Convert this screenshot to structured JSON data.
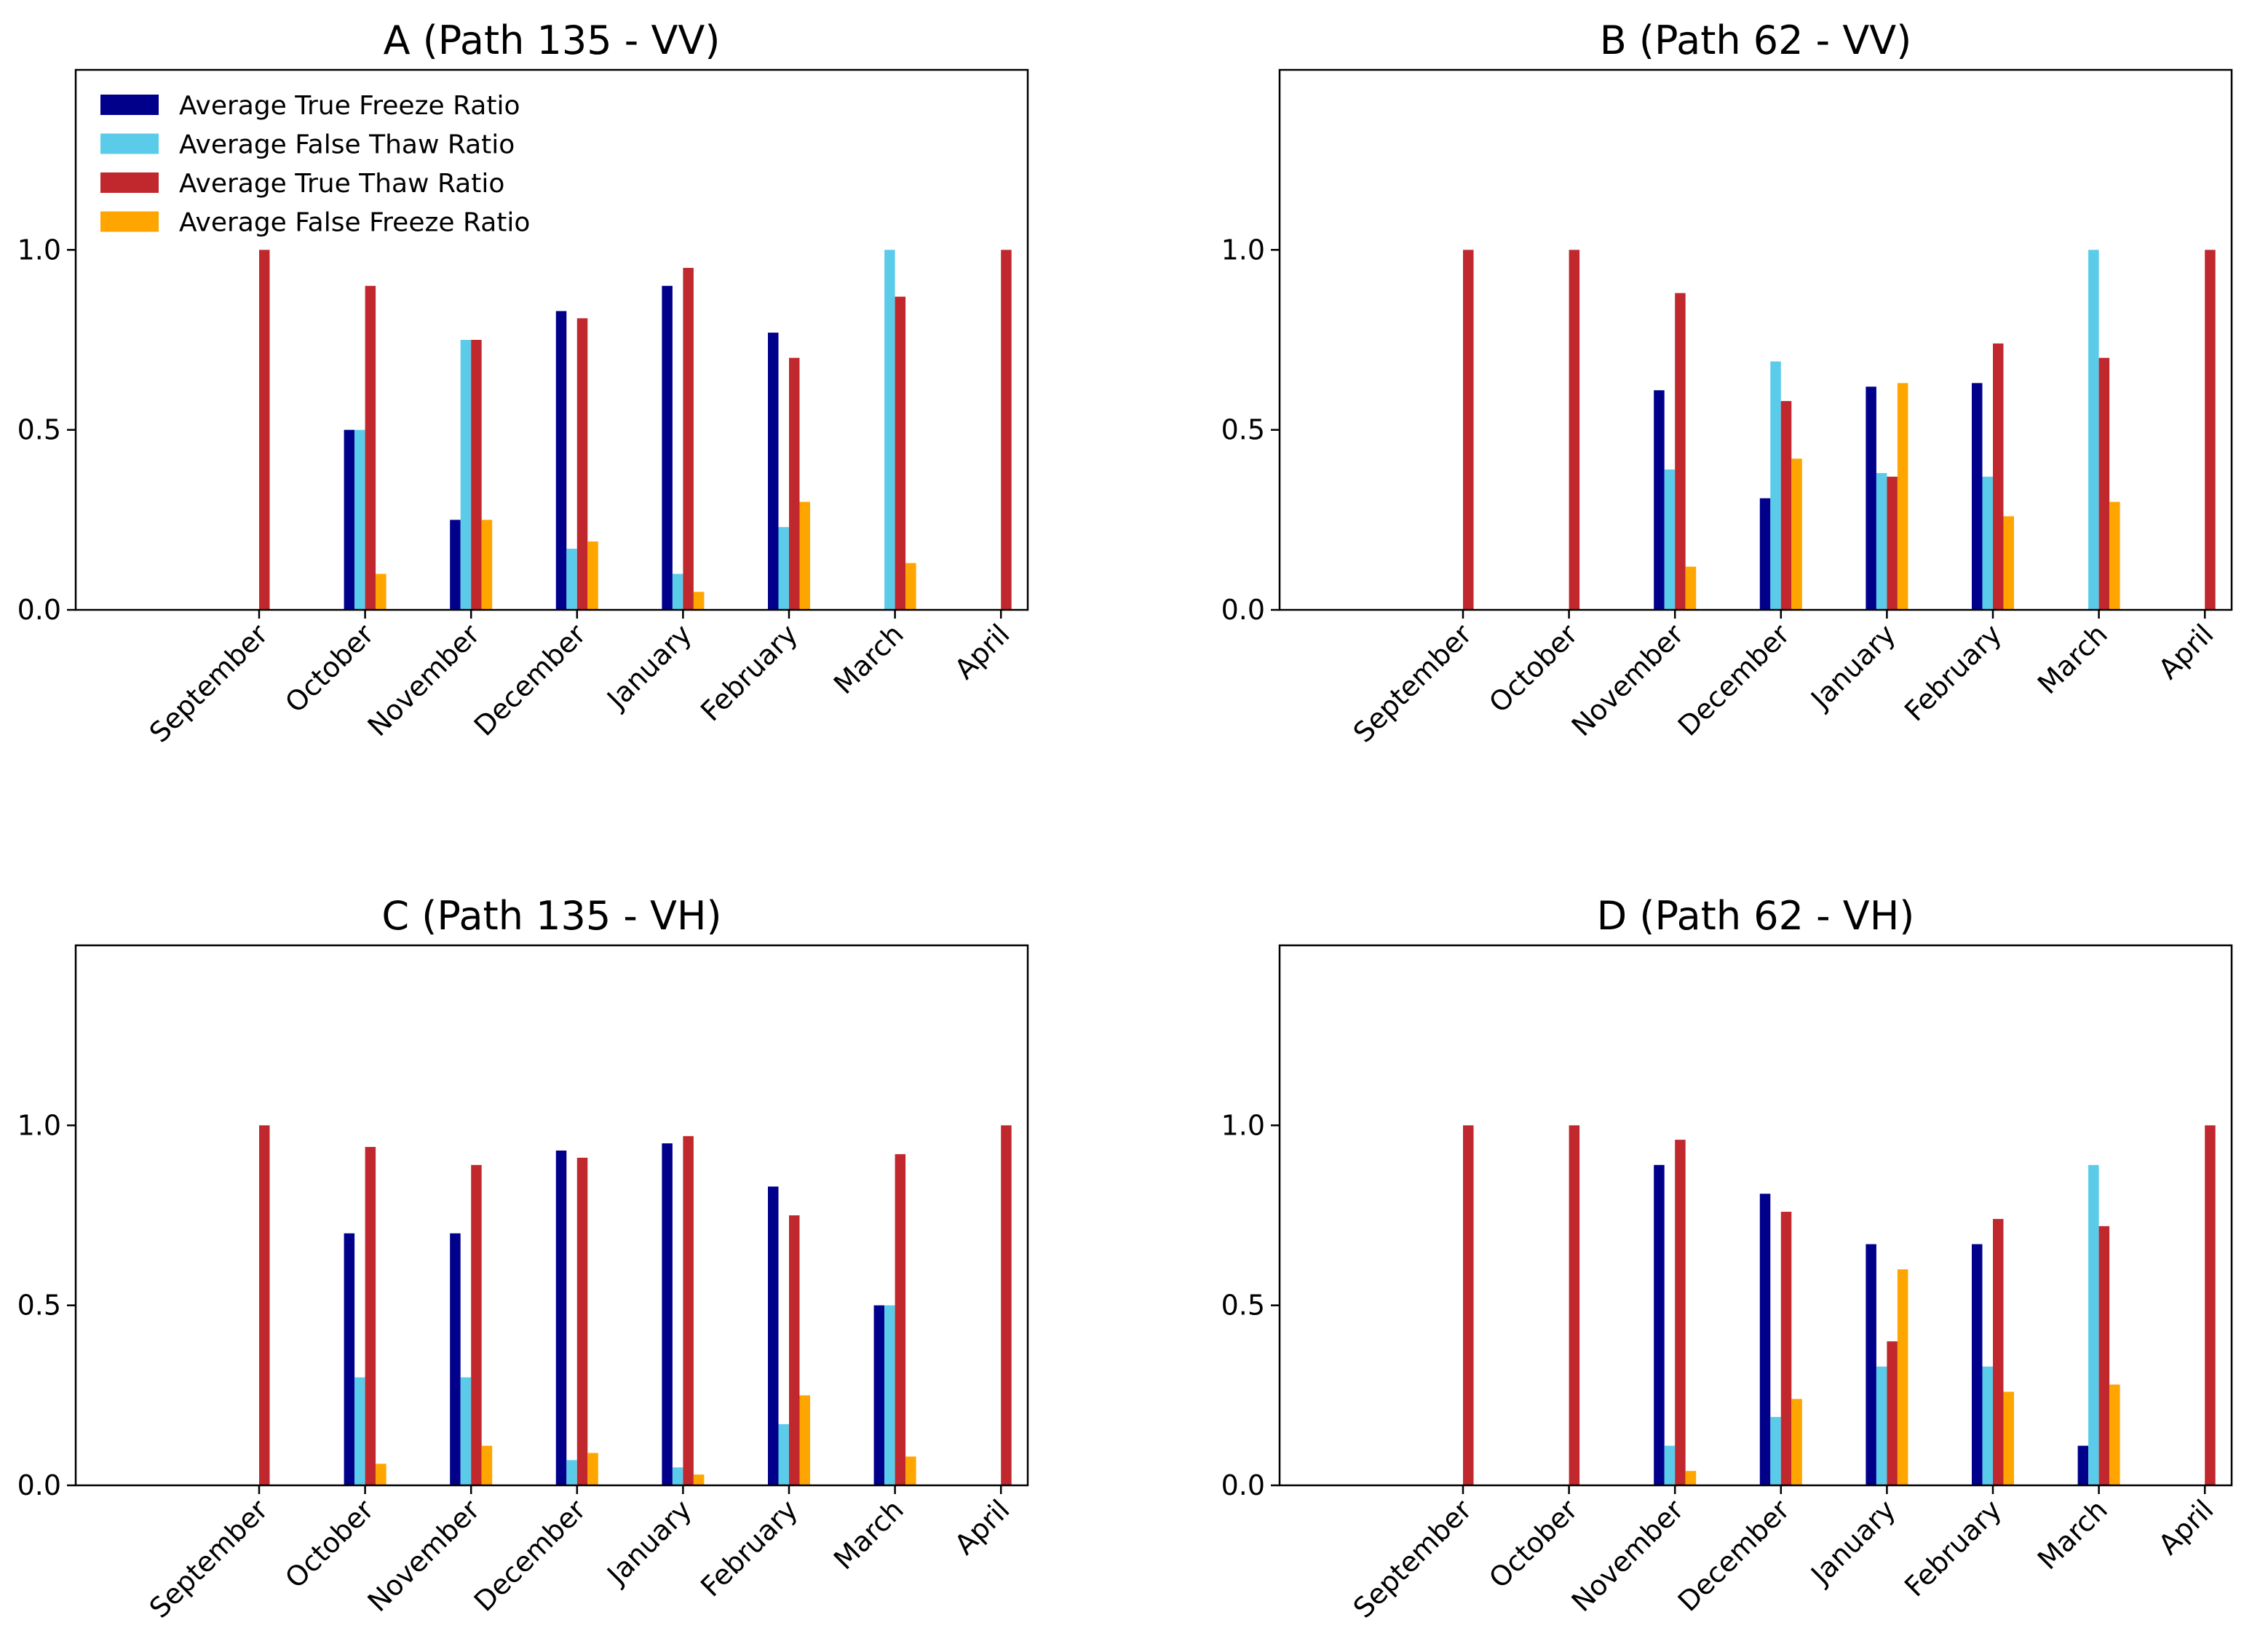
{
  "figure": {
    "series_colors": [
      "#00008B",
      "#5BCBEA",
      "#C0282D",
      "#FFA500"
    ],
    "legend_location": "upper-left (panel A only)"
  },
  "chart_data": [
    {
      "type": "bar",
      "title": "A (Path 135 - VV)",
      "xlabel": "",
      "ylabel": "",
      "ylim": [
        0,
        1.5
      ],
      "yticks": [
        "0.0",
        "0.5",
        "1.0"
      ],
      "categories": [
        "September",
        "October",
        "November",
        "December",
        "January",
        "February",
        "March",
        "April"
      ],
      "series": [
        {
          "name": "Average True Freeze Ratio",
          "values": [
            0,
            0.5,
            0.25,
            0.83,
            0.9,
            0.77,
            0,
            0
          ]
        },
        {
          "name": "Average False Thaw Ratio",
          "values": [
            0,
            0.5,
            0.75,
            0.17,
            0.1,
            0.23,
            1.0,
            0
          ]
        },
        {
          "name": "Average True Thaw Ratio",
          "values": [
            1.0,
            0.9,
            0.75,
            0.81,
            0.95,
            0.7,
            0.87,
            1.0
          ]
        },
        {
          "name": "Average False Freeze Ratio",
          "values": [
            0,
            0.1,
            0.25,
            0.19,
            0.05,
            0.3,
            0.13,
            0
          ]
        }
      ]
    },
    {
      "type": "bar",
      "title": "B (Path 62 - VV)",
      "xlabel": "",
      "ylabel": "",
      "ylim": [
        0,
        1.5
      ],
      "yticks": [
        "0.0",
        "0.5",
        "1.0"
      ],
      "categories": [
        "September",
        "October",
        "November",
        "December",
        "January",
        "February",
        "March",
        "April"
      ],
      "series": [
        {
          "name": "Average True Freeze Ratio",
          "values": [
            0,
            0,
            0.61,
            0.31,
            0.62,
            0.63,
            0,
            0
          ]
        },
        {
          "name": "Average False Thaw Ratio",
          "values": [
            0,
            0,
            0.39,
            0.69,
            0.38,
            0.37,
            1.0,
            0
          ]
        },
        {
          "name": "Average True Thaw Ratio",
          "values": [
            1.0,
            1.0,
            0.88,
            0.58,
            0.37,
            0.74,
            0.7,
            1.0
          ]
        },
        {
          "name": "Average False Freeze Ratio",
          "values": [
            0,
            0,
            0.12,
            0.42,
            0.63,
            0.26,
            0.3,
            0
          ]
        }
      ]
    },
    {
      "type": "bar",
      "title": "C (Path 135 - VH)",
      "xlabel": "",
      "ylabel": "",
      "ylim": [
        0,
        1.5
      ],
      "yticks": [
        "0.0",
        "0.5",
        "1.0"
      ],
      "categories": [
        "September",
        "October",
        "November",
        "December",
        "January",
        "February",
        "March",
        "April"
      ],
      "series": [
        {
          "name": "Average True Freeze Ratio",
          "values": [
            0,
            0.7,
            0.7,
            0.93,
            0.95,
            0.83,
            0.5,
            0
          ]
        },
        {
          "name": "Average False Thaw Ratio",
          "values": [
            0,
            0.3,
            0.3,
            0.07,
            0.05,
            0.17,
            0.5,
            0
          ]
        },
        {
          "name": "Average True Thaw Ratio",
          "values": [
            1.0,
            0.94,
            0.89,
            0.91,
            0.97,
            0.75,
            0.92,
            1.0
          ]
        },
        {
          "name": "Average False Freeze Ratio",
          "values": [
            0,
            0.06,
            0.11,
            0.09,
            0.03,
            0.25,
            0.08,
            0
          ]
        }
      ]
    },
    {
      "type": "bar",
      "title": "D (Path 62 - VH)",
      "xlabel": "",
      "ylabel": "",
      "ylim": [
        0,
        1.5
      ],
      "yticks": [
        "0.0",
        "0.5",
        "1.0"
      ],
      "categories": [
        "September",
        "October",
        "November",
        "December",
        "January",
        "February",
        "March",
        "April"
      ],
      "series": [
        {
          "name": "Average True Freeze Ratio",
          "values": [
            0,
            0,
            0.89,
            0.81,
            0.67,
            0.67,
            0.11,
            0
          ]
        },
        {
          "name": "Average False Thaw Ratio",
          "values": [
            0,
            0,
            0.11,
            0.19,
            0.33,
            0.33,
            0.89,
            0
          ]
        },
        {
          "name": "Average True Thaw Ratio",
          "values": [
            1.0,
            1.0,
            0.96,
            0.76,
            0.4,
            0.74,
            0.72,
            1.0
          ]
        },
        {
          "name": "Average False Freeze Ratio",
          "values": [
            0,
            0,
            0.04,
            0.24,
            0.6,
            0.26,
            0.28,
            0
          ]
        }
      ]
    }
  ]
}
